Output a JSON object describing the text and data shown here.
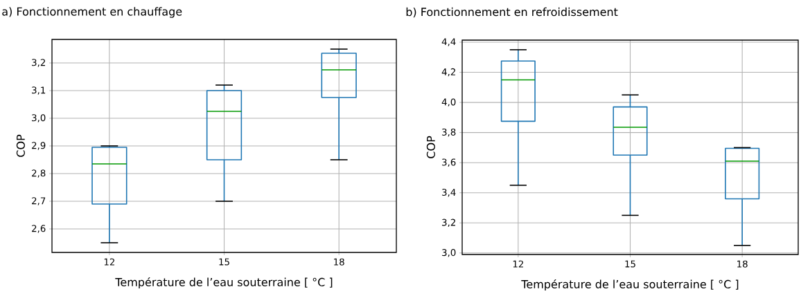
{
  "chart_data": [
    {
      "type": "box",
      "title": "a) Fonctionnement en chauffage",
      "xlabel": "Température de l’eau souterraine [ °C ]",
      "ylabel": "COP",
      "categories": [
        "12",
        "15",
        "18"
      ],
      "series": [
        {
          "color": "#1f77b4",
          "boxes": [
            {
              "low": 2.55,
              "q1": 2.69,
              "median": 2.835,
              "q3": 2.895,
              "high": 2.9
            },
            {
              "low": 2.7,
              "q1": 2.85,
              "median": 3.025,
              "q3": 3.1,
              "high": 3.12
            },
            {
              "low": 2.85,
              "q1": 3.075,
              "median": 3.175,
              "q3": 3.235,
              "high": 3.25
            }
          ]
        }
      ],
      "ylim": [
        2.515,
        3.285
      ],
      "yticks": [
        {
          "value": 2.6,
          "label": "2,6"
        },
        {
          "value": 2.7,
          "label": "2,7"
        },
        {
          "value": 2.8,
          "label": "2,8"
        },
        {
          "value": 2.9,
          "label": "2,9"
        },
        {
          "value": 3.0,
          "label": "3,0"
        },
        {
          "value": 3.1,
          "label": "3,1"
        },
        {
          "value": 3.2,
          "label": "3,2"
        }
      ],
      "grid": true
    },
    {
      "type": "box",
      "title": "b) Fonctionnement en refroidissement",
      "xlabel": "Température de l’eau souterraine [ °C ]",
      "ylabel": "COP",
      "categories": [
        "12",
        "15",
        "18"
      ],
      "series": [
        {
          "color": "#1f77b4",
          "boxes": [
            {
              "low": 3.45,
              "q1": 3.875,
              "median": 4.15,
              "q3": 4.275,
              "high": 4.35
            },
            {
              "low": 3.25,
              "q1": 3.65,
              "median": 3.835,
              "q3": 3.97,
              "high": 4.05
            },
            {
              "low": 3.05,
              "q1": 3.36,
              "median": 3.61,
              "q3": 3.695,
              "high": 3.7
            }
          ]
        }
      ],
      "ylim": [
        2.99,
        4.414
      ],
      "yticks": [
        {
          "value": 3.0,
          "label": "3,0"
        },
        {
          "value": 3.2,
          "label": "3,2"
        },
        {
          "value": 3.4,
          "label": "3,4"
        },
        {
          "value": 3.6,
          "label": "3,6"
        },
        {
          "value": 3.8,
          "label": "3,8"
        },
        {
          "value": 4.0,
          "label": "4,0"
        },
        {
          "value": 4.2,
          "label": "4,2"
        },
        {
          "value": 4.4,
          "label": "4,4"
        }
      ],
      "grid": true
    }
  ]
}
